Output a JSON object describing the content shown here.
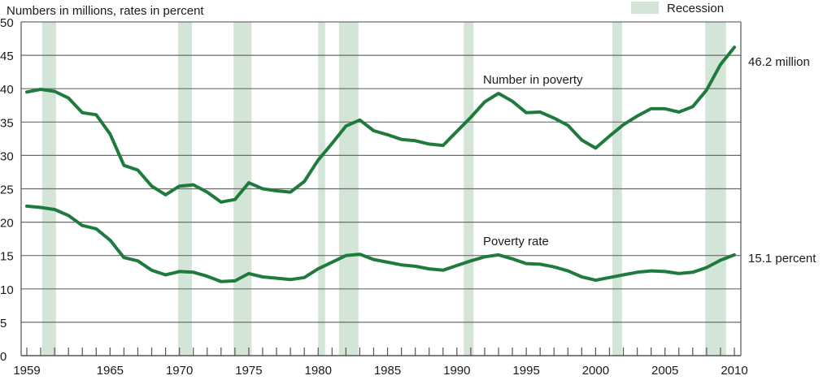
{
  "chart_data": {
    "type": "line",
    "title": "",
    "ylabel": "Numbers in millions, rates in percent",
    "xlabel": "",
    "ylim": [
      0,
      50
    ],
    "xlim": [
      1959,
      2010
    ],
    "yticks": [
      "0",
      "5",
      "10",
      "15",
      "20",
      "25",
      "30",
      "35",
      "40",
      "45",
      "50"
    ],
    "xtick_labels": [
      {
        "year": 1959,
        "label": "1959"
      },
      {
        "year": 1965,
        "label": "1965"
      },
      {
        "year": 1970,
        "label": "1970"
      },
      {
        "year": 1975,
        "label": "1975"
      },
      {
        "year": 1980,
        "label": "1980"
      },
      {
        "year": 1985,
        "label": "1985"
      },
      {
        "year": 1990,
        "label": "1990"
      },
      {
        "year": 1995,
        "label": "1995"
      },
      {
        "year": 2000,
        "label": "2000"
      },
      {
        "year": 2005,
        "label": "2005"
      },
      {
        "year": 2010,
        "label": "2010"
      }
    ],
    "grid": true,
    "legend": {
      "label": "Recession",
      "placement": "top-right",
      "color": "#d3e5d6"
    },
    "line_color": "#1f7a3d",
    "recessions": [
      [
        1960.1,
        1961.1
      ],
      [
        1969.9,
        1970.9
      ],
      [
        1973.9,
        1975.2
      ],
      [
        1980.0,
        1980.5
      ],
      [
        1981.5,
        1982.9
      ],
      [
        1990.5,
        1991.2
      ],
      [
        2001.2,
        2001.9
      ],
      [
        2007.9,
        2009.4
      ]
    ],
    "x": [
      1959,
      1960,
      1961,
      1962,
      1963,
      1964,
      1965,
      1966,
      1967,
      1968,
      1969,
      1970,
      1971,
      1972,
      1973,
      1974,
      1975,
      1976,
      1977,
      1978,
      1979,
      1980,
      1981,
      1982,
      1983,
      1984,
      1985,
      1986,
      1987,
      1988,
      1989,
      1990,
      1991,
      1992,
      1993,
      1994,
      1995,
      1996,
      1997,
      1998,
      1999,
      2000,
      2001,
      2002,
      2003,
      2004,
      2005,
      2006,
      2007,
      2008,
      2009,
      2010
    ],
    "series": [
      {
        "name": "Number in poverty",
        "end_label": "46.2 million",
        "values": [
          39.5,
          39.9,
          39.6,
          38.6,
          36.4,
          36.1,
          33.2,
          28.5,
          27.8,
          25.4,
          24.1,
          25.4,
          25.6,
          24.5,
          23.0,
          23.4,
          25.9,
          25.0,
          24.7,
          24.5,
          26.1,
          29.3,
          31.8,
          34.4,
          35.3,
          33.7,
          33.1,
          32.4,
          32.2,
          31.7,
          31.5,
          33.6,
          35.7,
          38.0,
          39.3,
          38.1,
          36.4,
          36.5,
          35.6,
          34.5,
          32.3,
          31.1,
          32.9,
          34.6,
          35.9,
          37.0,
          37.0,
          36.5,
          37.3,
          39.8,
          43.6,
          46.2
        ]
      },
      {
        "name": "Poverty rate",
        "end_label": "15.1 percent",
        "values": [
          22.4,
          22.2,
          21.9,
          21.0,
          19.5,
          19.0,
          17.3,
          14.7,
          14.2,
          12.8,
          12.1,
          12.6,
          12.5,
          11.9,
          11.1,
          11.2,
          12.3,
          11.8,
          11.6,
          11.4,
          11.7,
          13.0,
          14.0,
          15.0,
          15.2,
          14.4,
          14.0,
          13.6,
          13.4,
          13.0,
          12.8,
          13.5,
          14.2,
          14.8,
          15.1,
          14.5,
          13.8,
          13.7,
          13.3,
          12.7,
          11.8,
          11.3,
          11.7,
          12.1,
          12.5,
          12.7,
          12.6,
          12.3,
          12.5,
          13.2,
          14.3,
          15.1
        ]
      }
    ]
  }
}
